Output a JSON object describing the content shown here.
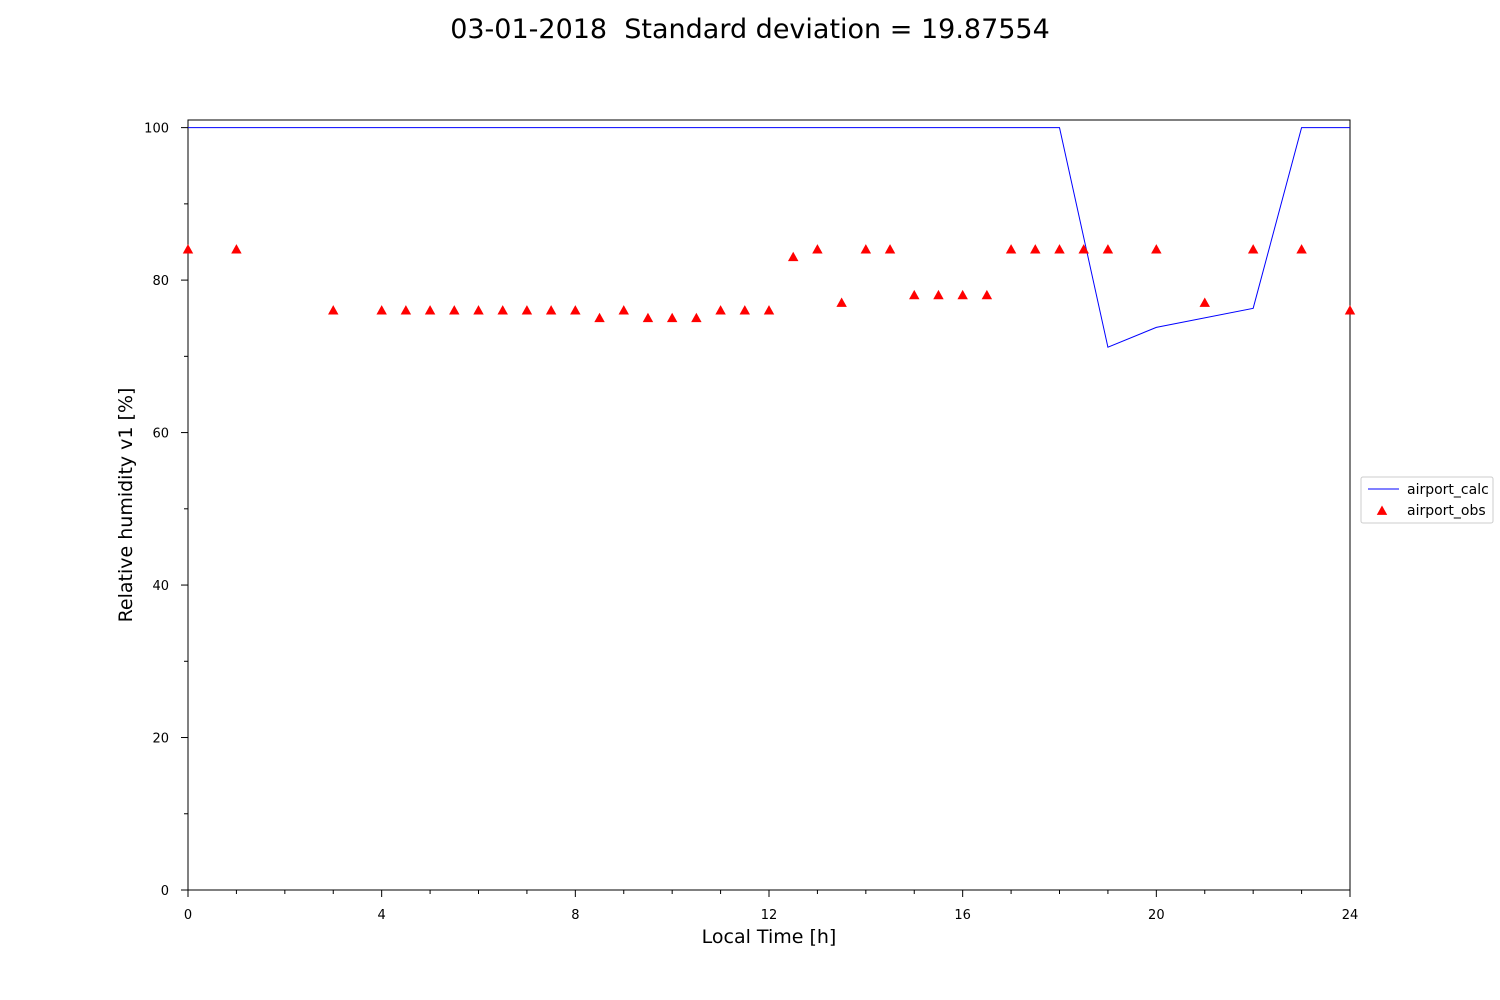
{
  "chart_data": {
    "type": "line",
    "title": "03-01-2018  Standard deviation = 19.87554",
    "xlabel": "Local Time [h]",
    "ylabel": "Relative humidity v1 [%]",
    "xlim": [
      0,
      24
    ],
    "ylim": [
      0,
      101
    ],
    "xticks": [
      0,
      4,
      8,
      12,
      16,
      20,
      24
    ],
    "yticks": [
      0,
      20,
      40,
      60,
      80,
      100
    ],
    "grid": false,
    "legend_position": "right",
    "series": [
      {
        "name": "airport_calc",
        "kind": "line",
        "color": "#0000ff",
        "x": [
          0,
          18,
          19,
          20,
          22,
          23,
          24
        ],
        "y": [
          100,
          100,
          71.2,
          73.8,
          76.3,
          100,
          100
        ]
      },
      {
        "name": "airport_obs",
        "kind": "scatter",
        "marker": "triangle",
        "color": "#ff0000",
        "x": [
          0,
          1,
          3,
          4,
          4.5,
          5,
          5.5,
          6,
          6.5,
          7,
          7.5,
          8,
          8.5,
          9,
          9.5,
          10,
          10.5,
          11,
          11.5,
          12,
          12.5,
          13,
          13.5,
          14,
          14.5,
          15,
          15.5,
          16,
          16.5,
          17,
          17.5,
          18,
          18.5,
          19,
          20,
          21,
          22,
          23,
          24
        ],
        "y": [
          84,
          84,
          76,
          76,
          76,
          76,
          76,
          76,
          76,
          76,
          76,
          76,
          75,
          76,
          75,
          75,
          75,
          76,
          76,
          76,
          83,
          84,
          77,
          84,
          84,
          78,
          78,
          78,
          78,
          84,
          84,
          84,
          84,
          84,
          84,
          77,
          84,
          84,
          76
        ]
      }
    ]
  }
}
